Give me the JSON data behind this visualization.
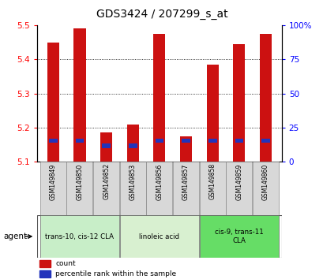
{
  "title": "GDS3424 / 207299_s_at",
  "categories": [
    "GSM149849",
    "GSM149850",
    "GSM149852",
    "GSM149853",
    "GSM149856",
    "GSM149857",
    "GSM149858",
    "GSM149859",
    "GSM149860"
  ],
  "red_tops": [
    5.45,
    5.49,
    5.185,
    5.21,
    5.475,
    5.175,
    5.385,
    5.445,
    5.475
  ],
  "blue_bottoms": [
    5.155,
    5.155,
    5.14,
    5.14,
    5.155,
    5.155,
    5.155,
    5.155,
    5.155
  ],
  "blue_tops": [
    5.168,
    5.168,
    5.153,
    5.153,
    5.168,
    5.168,
    5.168,
    5.168,
    5.168
  ],
  "baseline": 5.1,
  "ylim_min": 5.1,
  "ylim_max": 5.5,
  "y2lim_min": 0,
  "y2lim_max": 100,
  "yticks": [
    5.1,
    5.2,
    5.3,
    5.4,
    5.5
  ],
  "y2ticks": [
    0,
    25,
    50,
    75,
    100
  ],
  "y2ticklabels": [
    "0",
    "25",
    "50",
    "75",
    "100%"
  ],
  "bar_color_red": "#cc1111",
  "bar_color_blue": "#2233bb",
  "groups": [
    {
      "label": "trans-10, cis-12 CLA",
      "start": 0,
      "end": 2,
      "color": "#c8eec8"
    },
    {
      "label": "linoleic acid",
      "start": 3,
      "end": 5,
      "color": "#d8f0d0"
    },
    {
      "label": "cis-9, trans-11\nCLA",
      "start": 6,
      "end": 8,
      "color": "#66dd66"
    }
  ],
  "legend_items": [
    {
      "label": "count",
      "color": "#cc1111"
    },
    {
      "label": "percentile rank within the sample",
      "color": "#2233bb"
    }
  ],
  "agent_label": "agent",
  "title_fontsize": 10,
  "axis_fontsize": 7.5,
  "bar_width": 0.45
}
